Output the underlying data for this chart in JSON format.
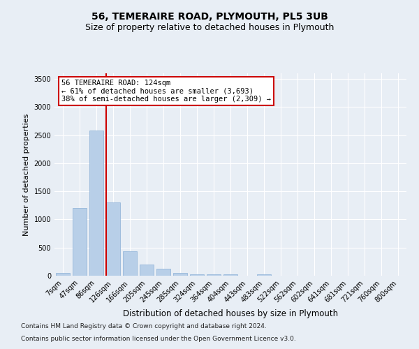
{
  "title": "56, TEMERAIRE ROAD, PLYMOUTH, PL5 3UB",
  "subtitle": "Size of property relative to detached houses in Plymouth",
  "xlabel": "Distribution of detached houses by size in Plymouth",
  "ylabel": "Number of detached properties",
  "bar_labels": [
    "7sqm",
    "47sqm",
    "86sqm",
    "126sqm",
    "166sqm",
    "205sqm",
    "245sqm",
    "285sqm",
    "324sqm",
    "364sqm",
    "404sqm",
    "443sqm",
    "483sqm",
    "522sqm",
    "562sqm",
    "602sqm",
    "641sqm",
    "681sqm",
    "721sqm",
    "760sqm",
    "800sqm"
  ],
  "bar_heights": [
    50,
    1200,
    2580,
    1300,
    430,
    200,
    130,
    55,
    30,
    25,
    20,
    0,
    25,
    0,
    0,
    0,
    0,
    0,
    0,
    0,
    0
  ],
  "bar_color": "#b8cfe8",
  "bar_edgecolor": "#8bafd6",
  "property_line_idx": 3,
  "annotation_line1": "56 TEMERAIRE ROAD: 124sqm",
  "annotation_line2": "← 61% of detached houses are smaller (3,693)",
  "annotation_line3": "38% of semi-detached houses are larger (2,309) →",
  "annotation_box_facecolor": "#ffffff",
  "annotation_box_edgecolor": "#cc0000",
  "line_color": "#cc0000",
  "ylim": [
    0,
    3600
  ],
  "yticks": [
    0,
    500,
    1000,
    1500,
    2000,
    2500,
    3000,
    3500
  ],
  "background_color": "#e8eef5",
  "plot_facecolor": "#e8eef5",
  "footer_line1": "Contains HM Land Registry data © Crown copyright and database right 2024.",
  "footer_line2": "Contains public sector information licensed under the Open Government Licence v3.0.",
  "title_fontsize": 10,
  "subtitle_fontsize": 9,
  "ylabel_fontsize": 8,
  "xlabel_fontsize": 8.5,
  "tick_fontsize": 7,
  "annotation_fontsize": 7.5,
  "footer_fontsize": 6.5
}
